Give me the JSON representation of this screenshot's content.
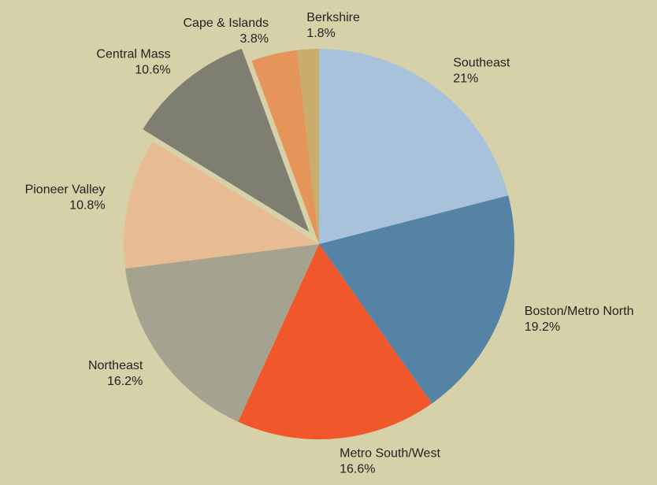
{
  "chart_data": {
    "type": "pie",
    "categories": [
      "Southeast",
      "Boston/Metro North",
      "Metro South/West",
      "Northeast",
      "Pioneer Valley",
      "Central Mass",
      "Cape & Islands",
      "Berkshire"
    ],
    "values": [
      21,
      19.2,
      16.6,
      16.2,
      10.8,
      10.6,
      3.8,
      1.8
    ],
    "value_labels": [
      "21%",
      "19.2%",
      "16.6%",
      "16.2%",
      "10.8%",
      "10.6%",
      "3.8%",
      "1.8%"
    ],
    "colors": [
      "#a7c2da",
      "#5583a6",
      "#f0582b",
      "#a6a290",
      "#e8bc92",
      "#7f7f71",
      "#e5955a",
      "#c9ad6c"
    ],
    "explode": [
      false,
      false,
      false,
      false,
      false,
      true,
      false,
      false
    ]
  }
}
